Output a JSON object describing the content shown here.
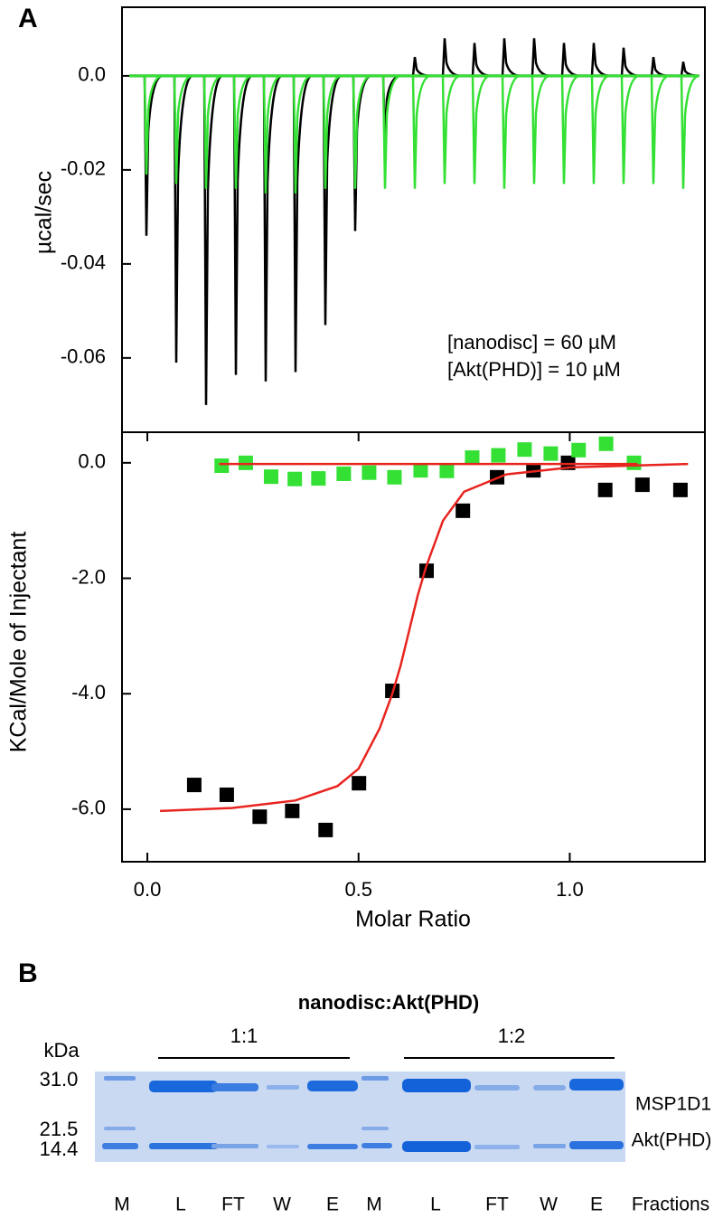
{
  "panel_labels": [
    "A",
    "B"
  ],
  "chart_data": [
    {
      "type": "line",
      "y_label": "µcal/sec",
      "annotations": [
        "[nanodisc] = 60 µM",
        "[Akt(PHD)] = 10 µM"
      ],
      "categories": [
        null,
        null,
        null,
        null,
        null,
        null,
        null,
        null,
        null,
        null,
        null,
        null,
        null,
        null,
        null,
        null,
        null,
        null,
        null
      ],
      "series": [
        {
          "color": "#000000",
          "values": [
            -0.034,
            -0.061,
            -0.07,
            -0.0636,
            -0.065,
            -0.063,
            -0.053,
            -0.033,
            -0.0146,
            0.004,
            0.008,
            0.007,
            0.008,
            0.008,
            0.007,
            0.007,
            0.006,
            0.004,
            0.003
          ]
        },
        {
          "color": "#33e033",
          "values": [
            -0.021,
            -0.023,
            -0.024,
            -0.024,
            -0.025,
            -0.025,
            -0.024,
            -0.024,
            -0.024,
            -0.024,
            -0.023,
            -0.023,
            -0.024,
            -0.023,
            -0.023,
            -0.023,
            -0.023,
            -0.023,
            -0.024
          ]
        }
      ],
      "ylim": [
        -0.0758,
        0.0146
      ],
      "yticks": [
        {
          "value": 0,
          "label": "0.0"
        },
        -0.02,
        -0.04,
        -0.06
      ]
    },
    {
      "type": "scatter",
      "x_label": "Molar Ratio",
      "y_label": "KCal/Mole of Injectant",
      "series": [
        {
          "color": "#000000",
          "x": [
            0.111,
            0.188,
            0.266,
            0.343,
            0.422,
            0.501,
            0.58,
            0.661,
            0.747,
            0.828,
            0.914,
            0.996,
            1.084,
            1.172,
            1.262
          ],
          "values": [
            -5.58,
            -5.75,
            -6.13,
            -6.03,
            -6.36,
            -5.55,
            -3.95,
            -1.87,
            -0.83,
            -0.25,
            -0.13,
            0.0,
            -0.47,
            -0.38,
            -0.47
          ]
        },
        {
          "color": "#33e033",
          "x": [
            0.176,
            0.233,
            0.293,
            0.349,
            0.405,
            0.465,
            0.525,
            0.585,
            0.647,
            0.709,
            0.769,
            0.831,
            0.893,
            0.955,
            1.021,
            1.086,
            1.152
          ],
          "values": [
            -0.05,
            0.0,
            -0.24,
            -0.28,
            -0.27,
            -0.19,
            -0.17,
            -0.25,
            -0.13,
            -0.14,
            0.09,
            0.13,
            0.23,
            0.16,
            0.22,
            0.33,
            0.0
          ]
        },
        {
          "type": "line",
          "color": "#e8241f",
          "x": [
            0.03,
            0.2,
            0.35,
            0.45,
            0.5,
            0.55,
            0.58,
            0.6,
            0.62,
            0.64,
            0.66,
            0.7,
            0.75,
            0.85,
            1.0,
            1.28
          ],
          "values": [
            -6.03,
            -5.98,
            -5.85,
            -5.6,
            -5.3,
            -4.6,
            -4.0,
            -3.5,
            -2.9,
            -2.3,
            -1.8,
            -1.0,
            -0.5,
            -0.2,
            -0.08,
            -0.02
          ]
        },
        {
          "type": "line",
          "color": "#e8241f",
          "x": [
            0.17,
            1.16
          ],
          "values": [
            -0.02,
            -0.02
          ]
        }
      ],
      "xlim": [
        -0.06,
        1.32
      ],
      "ylim": [
        -6.91,
        0.53
      ],
      "xticks": [
        {
          "value": 0,
          "label": "0.0"
        },
        0.5,
        {
          "value": 1,
          "label": "1.0"
        }
      ],
      "yticks": [
        {
          "value": 0,
          "label": "0.0"
        },
        {
          "value": -2,
          "label": "-2.0"
        },
        {
          "value": -4,
          "label": "-4.0"
        },
        {
          "value": -6,
          "label": "-6.0"
        }
      ]
    }
  ],
  "gel": {
    "title": "nanodisc:Akt(PHD)",
    "unit": "kDa",
    "groups": [
      "1:1",
      "1:2"
    ],
    "markers": [
      "31.0",
      "21.5",
      "14.4"
    ],
    "bands": [
      "MSP1D1",
      "Akt(PHD)"
    ],
    "lanes": [
      "M",
      "L",
      "FT",
      "W",
      "E",
      "M",
      "L",
      "FT",
      "W",
      "E"
    ],
    "lanes_label": "Fractions"
  }
}
